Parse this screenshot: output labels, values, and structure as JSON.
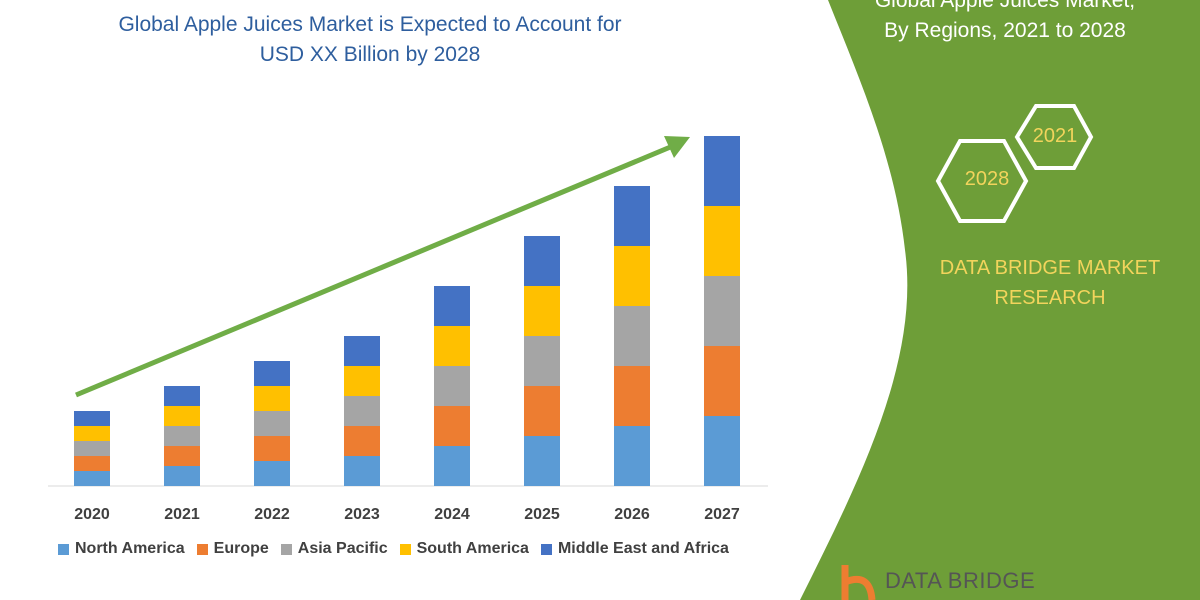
{
  "chart_data": {
    "type": "bar",
    "stacked": true,
    "title": "Global Apple Juices Market is Expected to Account for USD XX Billion by 2028",
    "categories": [
      "2020",
      "2021",
      "2022",
      "2023",
      "2024",
      "2025",
      "2026",
      "2027"
    ],
    "series": [
      {
        "name": "North America",
        "color": "#5B9BD5",
        "values": [
          15,
          20,
          25,
          30,
          40,
          50,
          60,
          70
        ]
      },
      {
        "name": "Europe",
        "color": "#ED7D31",
        "values": [
          15,
          20,
          25,
          30,
          40,
          50,
          60,
          70
        ]
      },
      {
        "name": "Asia Pacific",
        "color": "#A5A5A5",
        "values": [
          15,
          20,
          25,
          30,
          40,
          50,
          60,
          70
        ]
      },
      {
        "name": "South America",
        "color": "#FFC000",
        "values": [
          15,
          20,
          25,
          30,
          40,
          50,
          60,
          70
        ]
      },
      {
        "name": "Middle East and Africa",
        "color": "#4472C4",
        "values": [
          15,
          20,
          25,
          30,
          40,
          50,
          60,
          70
        ]
      }
    ],
    "legend_position": "bottom",
    "grid": false,
    "trend_arrow_color": "#70AD47"
  },
  "side_panel": {
    "title_line1": "Global Apple Juices Market,",
    "title_line2": "By Regions, 2021 to 2028",
    "hex_years": [
      "2028",
      "2021"
    ],
    "brand_line1": "DATA BRIDGE MARKET",
    "brand_line2": "RESEARCH",
    "logo_text": "DATA BRIDGE",
    "bg_color": "#6E9E38"
  }
}
